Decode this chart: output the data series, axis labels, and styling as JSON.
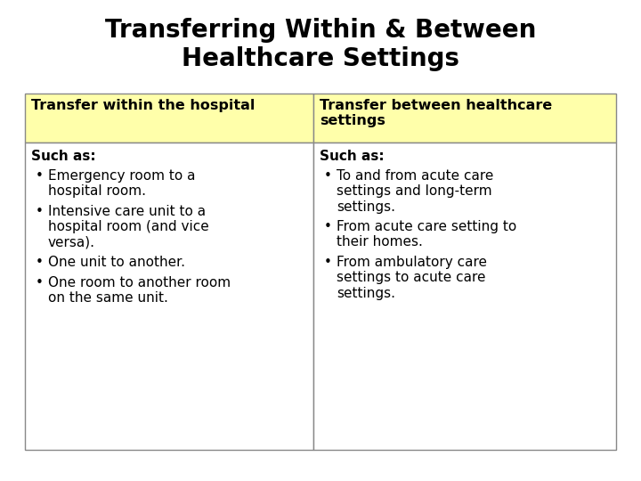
{
  "title_line1": "Transferring Within & Between",
  "title_line2": "Healthcare Settings",
  "title_fontsize": 20,
  "title_fontweight": "bold",
  "background_color": "#ffffff",
  "header_bg_color": "#ffffaa",
  "border_color": "#888888",
  "cell_bg_color": "#ffffff",
  "col1_header": "Transfer within the hospital",
  "col2_header": "Transfer between healthcare\nsettings",
  "header_fontsize": 11.5,
  "header_fontweight": "bold",
  "body_fontsize": 11,
  "such_as_label": "Such as:",
  "col1_bullets": [
    "Emergency room to a\nhospital room.",
    "Intensive care unit to a\nhospital room (and vice\nversa).",
    "One unit to another.",
    "One room to another room\non the same unit."
  ],
  "col2_bullets": [
    "To and from acute care\nsettings and long-term\nsettings.",
    "From acute care setting to\ntheir homes.",
    "From ambulatory care\nsettings to acute care\nsettings."
  ],
  "fig_width": 7.2,
  "fig_height": 5.4,
  "dpi": 100
}
